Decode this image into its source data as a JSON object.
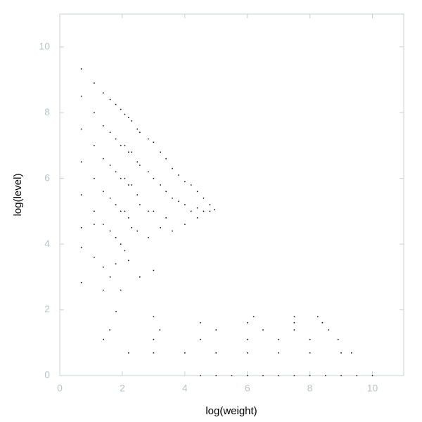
{
  "chart_data": {
    "type": "scatter",
    "xlabel": "log(weight)",
    "ylabel": "log(level)",
    "xlim": [
      0,
      11
    ],
    "ylim": [
      0,
      11
    ],
    "xticks": [
      0,
      2,
      4,
      6,
      8,
      10
    ],
    "yticks": [
      0,
      2,
      4,
      6,
      8,
      10
    ],
    "color": "#000000",
    "x": [
      0.69,
      0.69,
      0.69,
      0.69,
      0.69,
      0.69,
      0.69,
      0.69,
      1.1,
      1.1,
      1.1,
      1.1,
      1.1,
      1.1,
      1.1,
      1.39,
      1.39,
      1.39,
      1.39,
      1.39,
      1.39,
      1.39,
      1.61,
      1.61,
      1.61,
      1.61,
      1.61,
      1.61,
      1.79,
      1.79,
      1.79,
      1.79,
      1.79,
      1.79,
      1.95,
      1.95,
      1.95,
      1.95,
      1.95,
      1.95,
      2.08,
      2.08,
      2.08,
      2.08,
      2.08,
      2.2,
      2.2,
      2.2,
      2.2,
      2.2,
      2.3,
      2.3,
      2.3,
      2.3,
      2.48,
      2.48,
      2.48,
      2.48,
      2.56,
      2.56,
      2.56,
      2.56,
      2.83,
      2.83,
      2.83,
      2.83,
      3.0,
      3.0,
      3.0,
      3.0,
      3.22,
      3.22,
      3.22,
      3.4,
      3.4,
      3.4,
      3.6,
      3.6,
      3.6,
      3.8,
      3.8,
      4.0,
      4.0,
      4.0,
      4.2,
      4.2,
      4.4,
      4.4,
      4.4,
      4.6,
      4.6,
      4.8,
      4.8,
      4.95,
      4.5,
      5,
      5.5,
      6,
      6.5,
      7,
      7.5,
      8,
      8.5,
      9,
      9.5,
      10,
      2.2,
      3.0,
      4.0,
      5.0,
      6.0,
      7.0,
      8.0,
      9.0,
      9.33,
      1.4,
      3.0,
      4.5,
      6.0,
      7.0,
      8.0,
      8.9,
      1.6,
      3.2,
      5.0,
      6.5,
      7.5,
      8.6,
      4.5,
      6.0,
      7.5,
      8.4,
      3.0,
      6.2,
      7.5,
      8.25,
      1.8
    ],
    "y": [
      9.33,
      8.5,
      7.5,
      6.5,
      5.5,
      4.5,
      3.9,
      2.83,
      8.9,
      8.0,
      7.0,
      6.0,
      5.0,
      4.6,
      3.6,
      8.6,
      7.6,
      6.6,
      5.6,
      4.6,
      3.3,
      2.6,
      8.4,
      7.4,
      6.4,
      5.4,
      4.4,
      3.0,
      8.25,
      7.2,
      6.2,
      5.2,
      4.2,
      3.4,
      8.1,
      7.0,
      6.0,
      5.0,
      4.0,
      2.6,
      7.95,
      7.0,
      6.0,
      5.0,
      3.8,
      7.85,
      6.8,
      5.8,
      4.8,
      3.5,
      7.75,
      6.8,
      5.8,
      4.5,
      7.5,
      6.5,
      5.5,
      4.4,
      7.4,
      6.4,
      5.2,
      3.0,
      7.2,
      6.2,
      5.0,
      4.2,
      7.1,
      6.0,
      5.0,
      3.2,
      6.8,
      5.8,
      4.5,
      6.6,
      5.6,
      4.8,
      6.3,
      5.4,
      4.4,
      6.1,
      5.3,
      5.9,
      5.2,
      4.6,
      5.8,
      5.0,
      5.6,
      5.1,
      4.8,
      5.4,
      5.0,
      5.2,
      5.0,
      5.05,
      0,
      0,
      0,
      0,
      0,
      0,
      0,
      0,
      0,
      0,
      0,
      0,
      0.69,
      0.69,
      0.69,
      0.69,
      0.69,
      0.69,
      0.69,
      0.69,
      0.69,
      1.1,
      1.1,
      1.1,
      1.1,
      1.1,
      1.1,
      1.1,
      1.39,
      1.39,
      1.39,
      1.39,
      1.39,
      1.39,
      1.61,
      1.61,
      1.61,
      1.61,
      1.79,
      1.79,
      1.79,
      1.79,
      1.95
    ]
  }
}
